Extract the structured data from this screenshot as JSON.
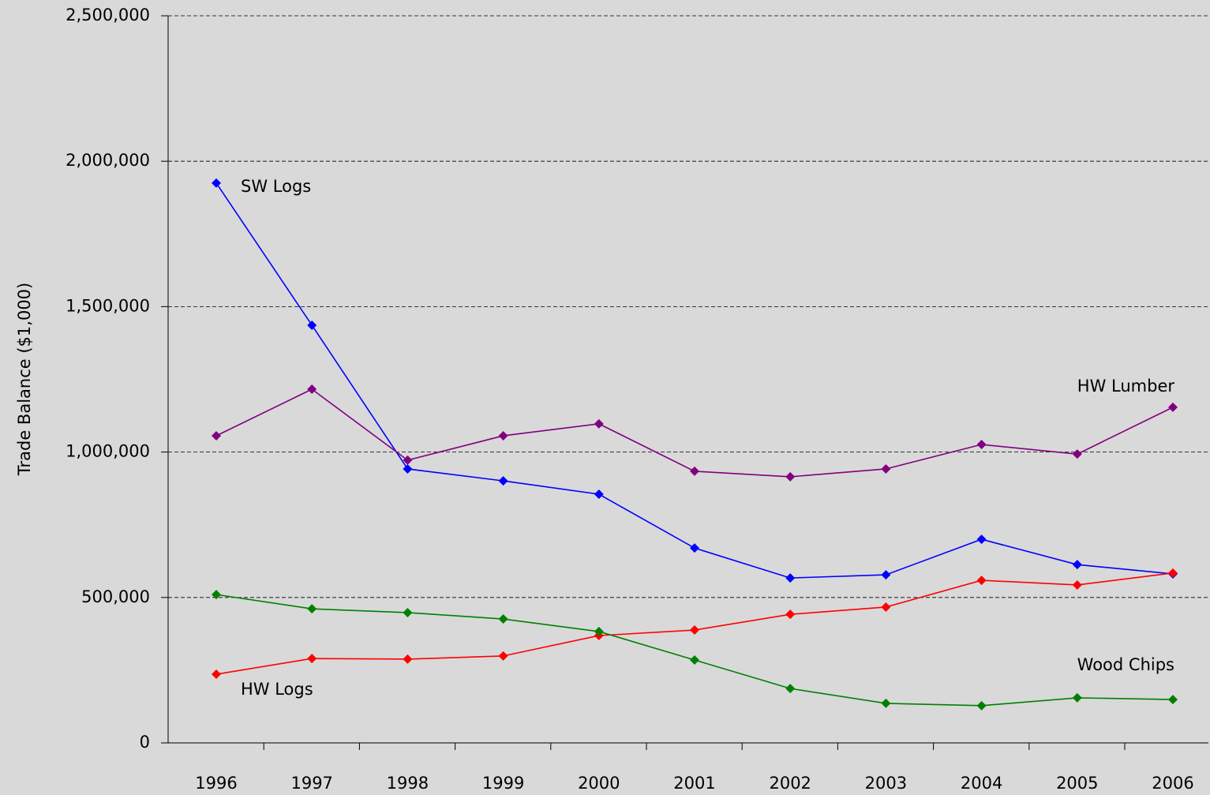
{
  "chart_data": {
    "type": "line",
    "y_label": "Trade Balance ($1,000)",
    "categories": [
      "1996",
      "1997",
      "1998",
      "1999",
      "2000",
      "2001",
      "2002",
      "2003",
      "2004",
      "2005",
      "2006"
    ],
    "series": [
      {
        "name": "SW Logs",
        "color": "#0000ff",
        "values": [
          1925000,
          1436000,
          942000,
          901000,
          855000,
          670000,
          567000,
          578000,
          700000,
          613000,
          581000
        ]
      },
      {
        "name": "HW Lumber",
        "color": "#800080",
        "values": [
          1056000,
          1216000,
          972000,
          1056000,
          1097000,
          934000,
          915000,
          942000,
          1026000,
          993000,
          1154000
        ]
      },
      {
        "name": "HW Logs",
        "color": "#ff0000",
        "values": [
          236000,
          290000,
          288000,
          299000,
          369000,
          388000,
          442000,
          467000,
          559000,
          543000,
          584000
        ]
      },
      {
        "name": "Wood Chips",
        "color": "#008000",
        "values": [
          510000,
          461000,
          448000,
          426000,
          383000,
          285000,
          187000,
          136000,
          128000,
          155000,
          149000
        ]
      }
    ],
    "ylim": [
      0,
      2500000
    ],
    "yticks": [
      0,
      {
        "value": 500000,
        "label": "500,000"
      },
      {
        "value": 1000000,
        "label": "1,000,000"
      },
      {
        "value": 1500000,
        "label": "1,500,000"
      },
      {
        "value": 2000000,
        "label": "2,000,000"
      },
      {
        "value": 2500000,
        "label": "2,500,000"
      }
    ],
    "grid": true
  }
}
